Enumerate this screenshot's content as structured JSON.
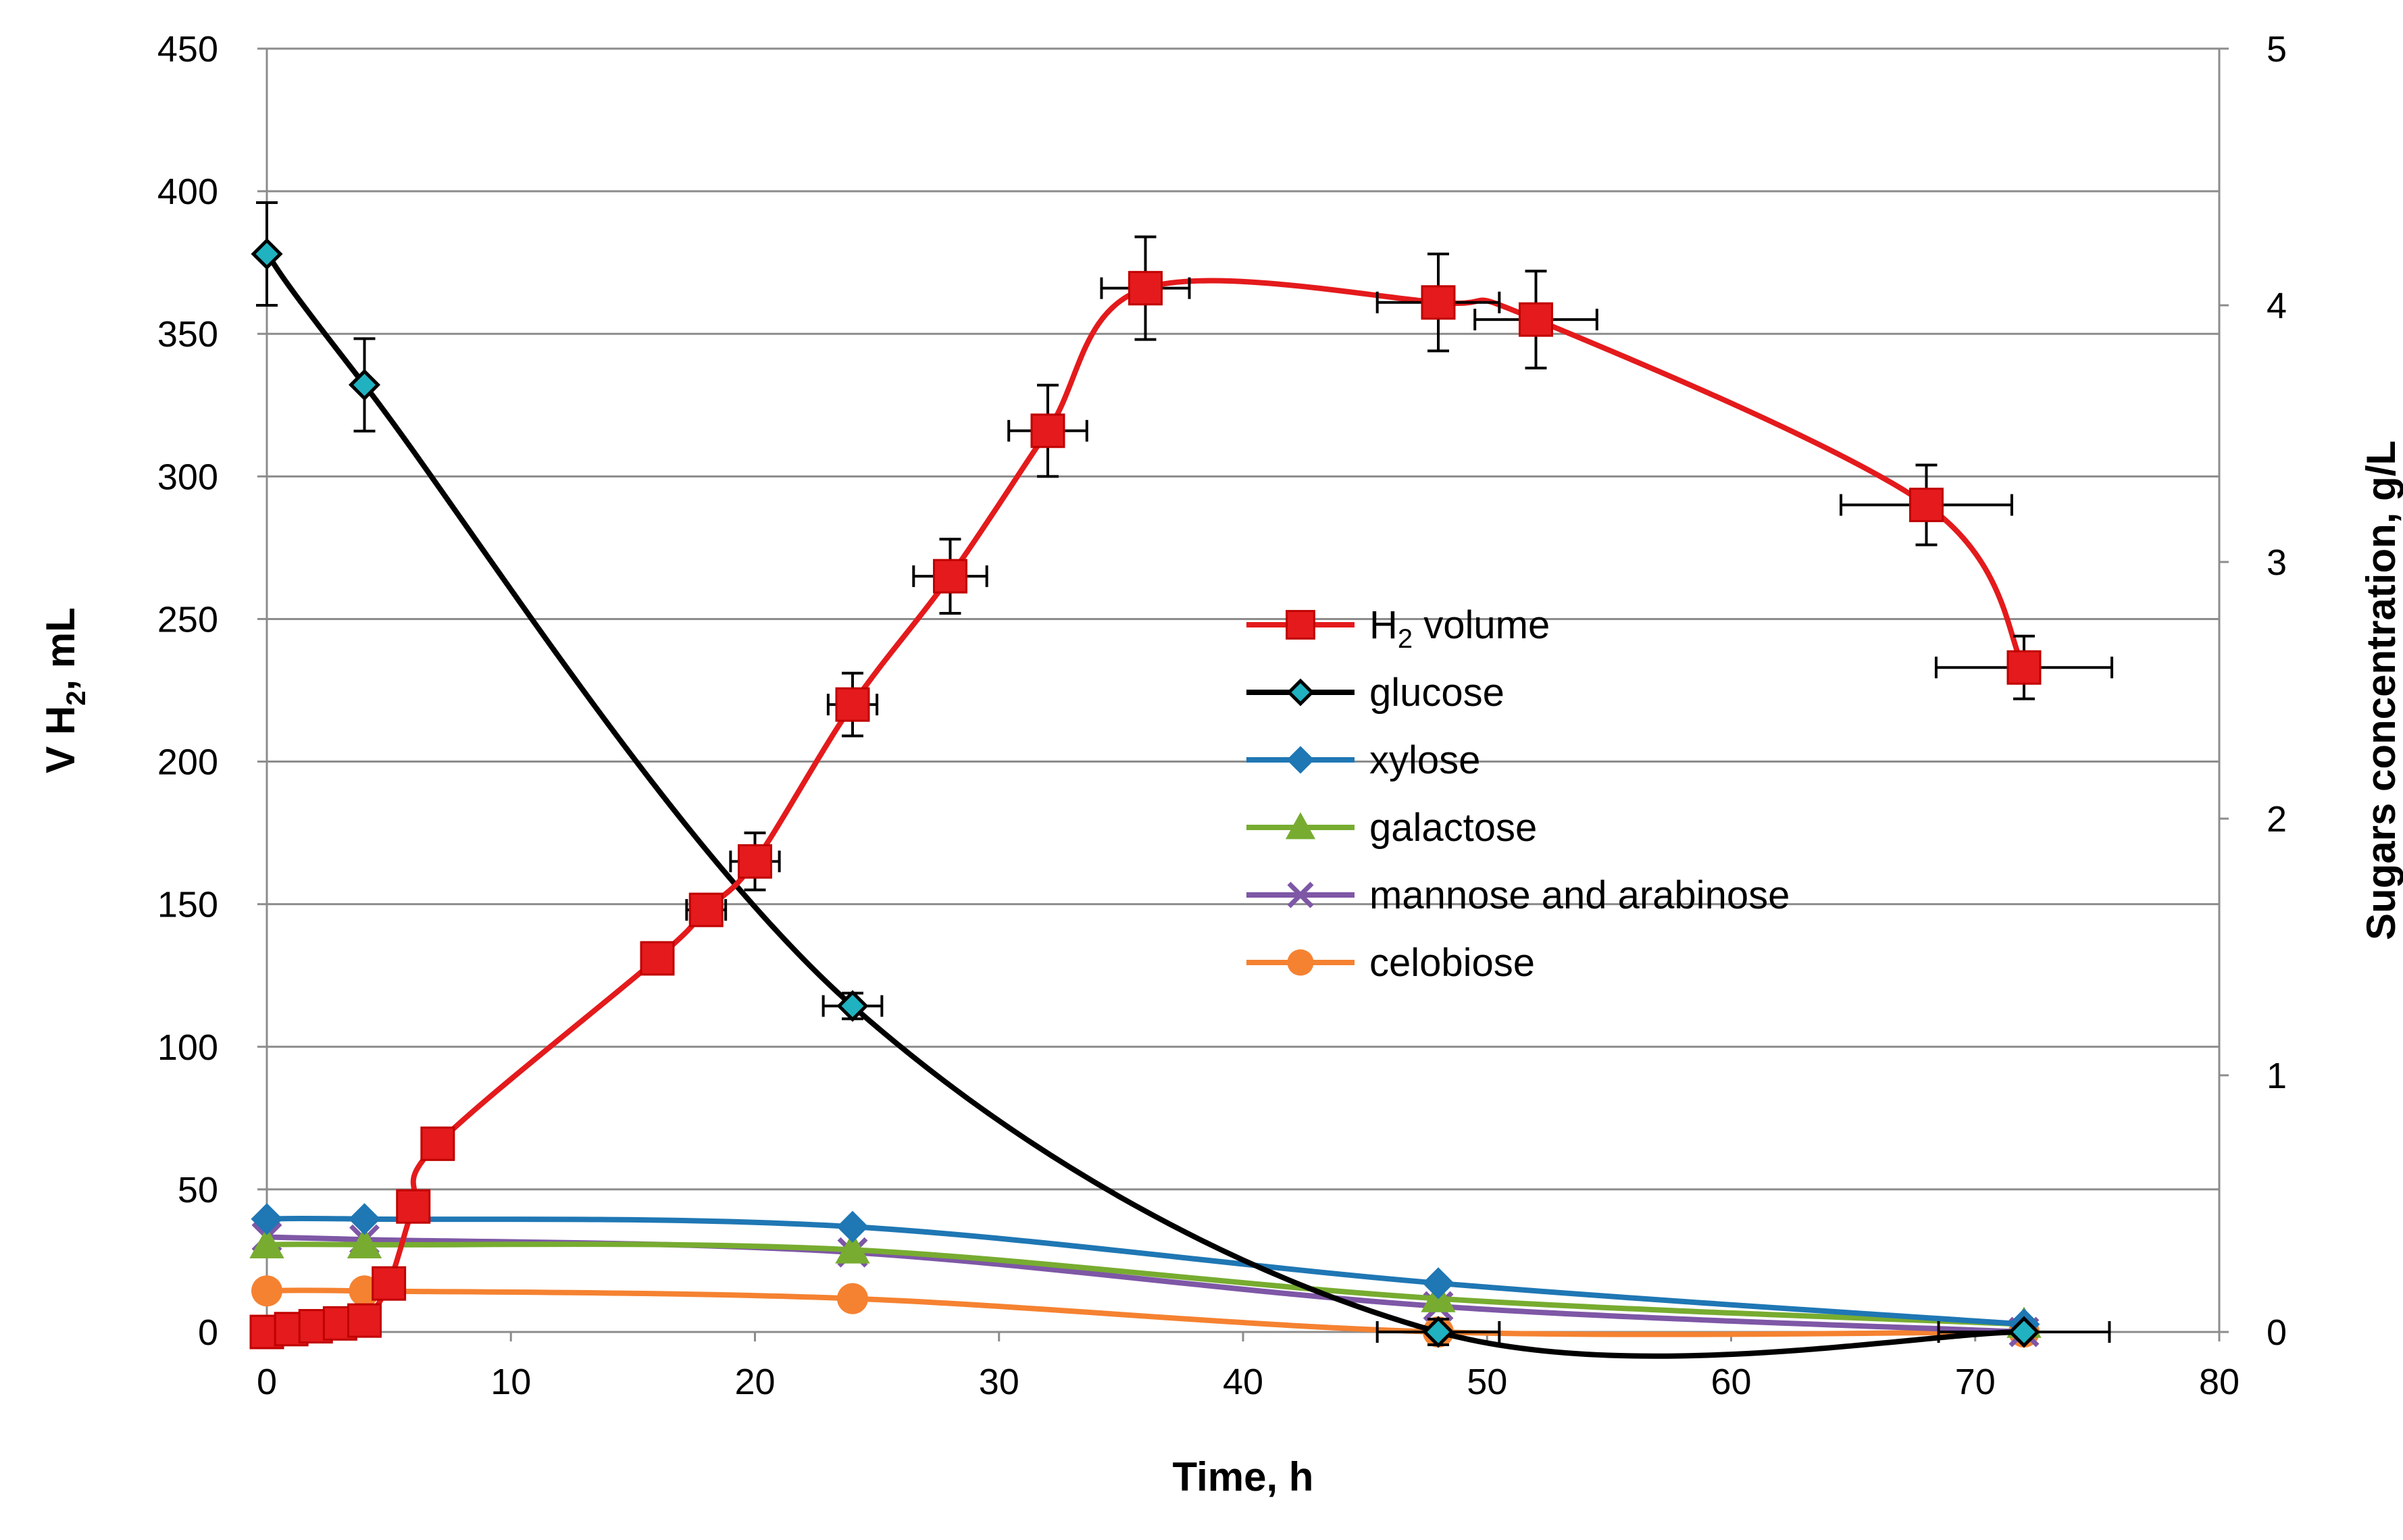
{
  "chart_data": {
    "type": "line",
    "xlabel": "Time, h",
    "ylabel_left": "V H2, mL",
    "ylabel_left_parts": [
      "V H",
      "2",
      ", mL"
    ],
    "ylabel_right": "Sugars concentration, g/L",
    "xlim": [
      0,
      80
    ],
    "xticks": [
      0,
      10,
      20,
      30,
      40,
      50,
      60,
      70,
      80
    ],
    "ylim_left": [
      0,
      450
    ],
    "yticks_left": [
      0,
      50,
      100,
      150,
      200,
      250,
      300,
      350,
      400,
      450
    ],
    "ylim_right": [
      0,
      5
    ],
    "yticks_right": [
      0,
      1,
      2,
      3,
      4,
      5
    ],
    "grid": "horizontal",
    "legend_placement": "center",
    "series": [
      {
        "name": "H2 volume",
        "label_parts": [
          "H",
          "2",
          " volume"
        ],
        "axis": "left",
        "color": "#e41a1c",
        "marker": "square",
        "x": [
          0,
          1,
          2,
          3,
          4,
          5,
          6,
          7,
          16,
          18,
          20,
          24,
          28,
          32,
          36,
          48,
          52,
          68,
          72
        ],
        "y": [
          0,
          1,
          2,
          3,
          4,
          17,
          44,
          66,
          131,
          148,
          165,
          220,
          265,
          316,
          366,
          361,
          355,
          290,
          233
        ],
        "xerr": [
          0,
          0,
          0,
          0,
          0,
          0,
          0,
          0,
          0,
          0.8,
          1,
          1,
          1.5,
          1.6,
          1.8,
          2.5,
          2.5,
          3.5,
          3.6
        ],
        "yerr": [
          0,
          0,
          0,
          0,
          0,
          0,
          0,
          0,
          0,
          0,
          10,
          11,
          13,
          16,
          18,
          17,
          17,
          14,
          11
        ]
      },
      {
        "name": "glucose",
        "axis": "right",
        "color": "#000000",
        "marker_fill": "#20b2c0",
        "marker": "diamond",
        "x": [
          0,
          4,
          24,
          48,
          72
        ],
        "y": [
          4.2,
          3.69,
          1.27,
          0,
          0
        ],
        "yerr": [
          0.2,
          0.18,
          0.05,
          0.05,
          0
        ],
        "xerr": [
          0,
          0,
          1.2,
          2.5,
          3.5
        ]
      },
      {
        "name": "xylose",
        "axis": "right",
        "color": "#1f77b4",
        "marker": "diamond",
        "x": [
          0,
          4,
          24,
          48,
          72
        ],
        "y": [
          0.44,
          0.44,
          0.41,
          0.19,
          0.03
        ]
      },
      {
        "name": "galactose",
        "axis": "right",
        "color": "#77ac30",
        "marker": "triangle",
        "x": [
          0,
          4,
          24,
          48,
          72
        ],
        "y": [
          0.34,
          0.34,
          0.32,
          0.13,
          0.03
        ]
      },
      {
        "name": "mannose and arabinose",
        "axis": "right",
        "color": "#7e57a6",
        "marker": "x",
        "x": [
          0,
          4,
          24,
          48,
          72
        ],
        "y": [
          0.37,
          0.36,
          0.31,
          0.1,
          0
        ]
      },
      {
        "name": "celobiose",
        "axis": "right",
        "color": "#f58231",
        "marker": "circle",
        "x": [
          0,
          4,
          24,
          48,
          72
        ],
        "y": [
          0.16,
          0.16,
          0.13,
          0,
          0
        ]
      }
    ]
  }
}
